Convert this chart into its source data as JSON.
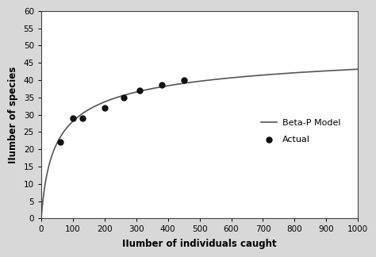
{
  "actual_x": [
    60,
    100,
    130,
    200,
    260,
    310,
    380,
    450
  ],
  "actual_y": [
    22,
    29,
    29,
    32,
    35,
    37,
    38.5,
    40
  ],
  "xlim": [
    0,
    1000
  ],
  "ylim": [
    0,
    60
  ],
  "xticks": [
    0,
    100,
    200,
    300,
    400,
    500,
    600,
    700,
    800,
    900,
    1000
  ],
  "yticks": [
    0,
    5,
    10,
    15,
    20,
    25,
    30,
    35,
    40,
    45,
    50,
    55,
    60
  ],
  "xlabel": "IIumber of individuals caught",
  "ylabel": "IIumber of species",
  "legend_actual": "Actual",
  "legend_model": "Beta-P Model",
  "line_color": "#555555",
  "marker_color": "#111111",
  "fig_bg": "#d8d8d8",
  "plot_bg": "#ffffff",
  "marker_size": 5,
  "line_width": 1.2,
  "smax": 55.0,
  "b": 18.0,
  "c": 0.38
}
